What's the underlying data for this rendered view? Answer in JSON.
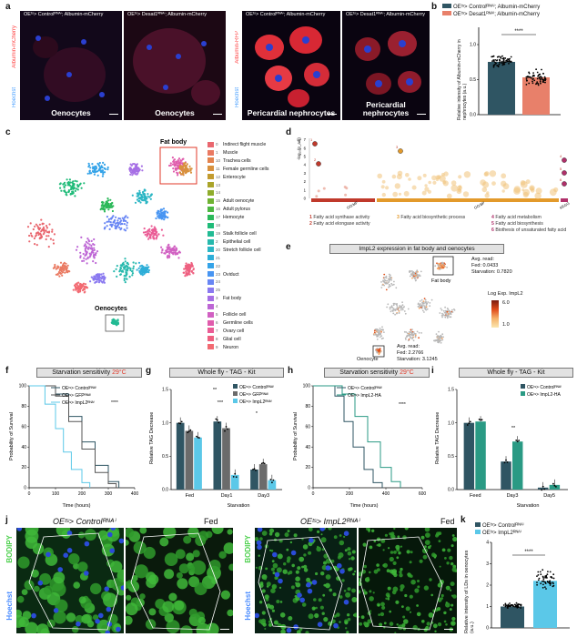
{
  "panel_letters": [
    "a",
    "b",
    "c",
    "d",
    "e",
    "f",
    "g",
    "h",
    "i",
    "j",
    "k"
  ],
  "panel_a": {
    "images": [
      {
        "title": "OEᵗˢ> Controlᴿᴺᴬⁱ; Albumin-mCherry",
        "caption": "Oenocytes"
      },
      {
        "title": "OEᵗˢ> Desat1ᴿᴺᴬⁱ; Albumin-mCherry",
        "caption": "Oenocytes"
      },
      {
        "title": "OEᵗˢ> Controlᴿᴺᴬⁱ; Albumin-mCherry",
        "caption": "Pericardial nephrocytes"
      },
      {
        "title": "OEᵗˢ> Desat1ᴿᴺᴬⁱ; Albumin-mCherry",
        "caption": "Pericardial nephrocytes"
      }
    ],
    "side_label_1": "Albumin-mCherry",
    "side_label_2": "Albumin-RFP",
    "hoechst": "Hoechst"
  },
  "panel_b": {
    "legend": [
      "OEᵗˢ> Controlᴿᴺᴬⁱ; Albumin-mCherry",
      "OEᵗˢ> Desat1ᴿᴺᴬⁱ; Albumin-mCherry"
    ],
    "ylabel": "Relative intensity of Albumin-mCherry in nephrocytes (a.u.)",
    "yticks": [
      "0.0",
      "0.5",
      "1.0",
      "1.5"
    ],
    "sig": "****",
    "colors": [
      "#2f5563",
      "#e8806a"
    ]
  },
  "panel_c": {
    "fat_body_label": "Fat body",
    "oenocytes_label": "Oenocytes",
    "legend": [
      {
        "n": "0",
        "label": "Indirect flight muscle",
        "color": "#e9676f"
      },
      {
        "n": "1",
        "label": "Muscle",
        "color": "#ea7a62"
      },
      {
        "n": "10",
        "label": "Trachea cells",
        "color": "#e3834e"
      },
      {
        "n": "11",
        "label": "Female germline cells",
        "color": "#d8913e"
      },
      {
        "n": "12",
        "label": "Enterocyte",
        "color": "#c29b2f"
      },
      {
        "n": "13",
        "label": "",
        "color": "#aaa42a"
      },
      {
        "n": "14",
        "label": "",
        "color": "#8fac2c"
      },
      {
        "n": "15",
        "label": "Adult oenocyte",
        "color": "#6fb232"
      },
      {
        "n": "16",
        "label": "Adult pylorus",
        "color": "#4cb742"
      },
      {
        "n": "17",
        "label": "Hemocyte",
        "color": "#2cb95a"
      },
      {
        "n": "18",
        "label": "",
        "color": "#1fbb78"
      },
      {
        "n": "19",
        "label": "Stalk follicle cell",
        "color": "#22bb94"
      },
      {
        "n": "2",
        "label": "Epithelial cell",
        "color": "#27b9ad"
      },
      {
        "n": "20",
        "label": "Stretch follicle cell",
        "color": "#2cb6c4"
      },
      {
        "n": "21",
        "label": "",
        "color": "#2eaed8"
      },
      {
        "n": "22",
        "label": "",
        "color": "#34a3e8"
      },
      {
        "n": "23",
        "label": "Oviduct",
        "color": "#4895f2"
      },
      {
        "n": "24",
        "label": "",
        "color": "#6886f4"
      },
      {
        "n": "25",
        "label": "",
        "color": "#8a79f0"
      },
      {
        "n": "3",
        "label": "Fat body",
        "color": "#a66fe5"
      },
      {
        "n": "4",
        "label": "",
        "color": "#bd66d5"
      },
      {
        "n": "5",
        "label": "Follicle cell",
        "color": "#d160c2"
      },
      {
        "n": "6",
        "label": "Germline cells",
        "color": "#e05cac"
      },
      {
        "n": "7",
        "label": "Ovary cell",
        "color": "#ea5c95"
      },
      {
        "n": "8",
        "label": "Glial cell",
        "color": "#ee6080"
      },
      {
        "n": "9",
        "label": "Neuron",
        "color": "#f26a72"
      }
    ]
  },
  "panel_d": {
    "ylabel": "-log₁₀(p_adj)",
    "yticks": [
      "0",
      "1",
      "2",
      "3",
      "4",
      "5",
      "6",
      "7"
    ],
    "sources": [
      "GO:MF",
      "GO:BP",
      "KEGG"
    ],
    "labels": [
      {
        "n": "1",
        "label": "Fatty acid synthase activity",
        "color": "#c0392b"
      },
      {
        "n": "2",
        "label": "Fatty acid elongase activity",
        "color": "#c0392b"
      },
      {
        "n": "3",
        "label": "Fatty acid biosynthetic process",
        "color": "#e39a2b"
      },
      {
        "n": "4",
        "label": "Fatty acid metabolism",
        "color": "#b0306a"
      },
      {
        "n": "5",
        "label": "Fatty acid biosynthesis",
        "color": "#b0306a"
      },
      {
        "n": "6",
        "label": "Biothesis of unsaturated fatty acid",
        "color": "#b0306a"
      }
    ]
  },
  "panel_e": {
    "title": "ImpL2 expression in fat body and oenocytes",
    "fat_body": "Fat body",
    "oenocyte": "Oenocyte",
    "fb_read": [
      "Avg. read:",
      "Fed: 0.0433",
      "Starvation: 0.7820"
    ],
    "oe_read": [
      "Avg. read:",
      "Fed: 2.2766",
      "Starvation: 3.1245"
    ],
    "scale_title": "Log Exp. ImpL2",
    "scale_max": "6.0",
    "scale_min": "1.0"
  },
  "panel_f": {
    "title": "Starvation sensitivity",
    "temp": "29°C",
    "legend": [
      "OEᵗˢ> Controlᴿᴺᴬⁱ",
      "OEᵗˢ> GFPᴿᴺᴬⁱ",
      "OEᵗˢ> ImpL2ᴿᴺᴬⁱ"
    ],
    "sig": "****",
    "ylabel": "Probability of Survival",
    "xlabel": "Time (hours)",
    "xticks": [
      "0",
      "100",
      "200",
      "300",
      "400"
    ],
    "yticks": [
      "0",
      "20",
      "40",
      "60",
      "80",
      "100"
    ]
  },
  "panel_g": {
    "title": "Whole fly - TAG - Kit",
    "legend": [
      "OEᵗˢ> Controlᴿᴺᴬⁱ",
      "OEᵗˢ> GFPᴿᴺᴬⁱ",
      "OEᵗˢ> ImpL2ᴿᴺᴬⁱ"
    ],
    "ylabel": "Relative TAG Decrease",
    "categories": [
      "Fed",
      "Day1",
      "Day3"
    ],
    "xsub": "Starvation",
    "yticks": [
      "0.0",
      "0.5",
      "1.0",
      "1.5"
    ],
    "sig": [
      "**",
      "***",
      "*"
    ],
    "colors": [
      "#2f5563",
      "#6b6b6b",
      "#5bc8e8"
    ]
  },
  "panel_h": {
    "title": "Starvation sensitivity",
    "temp": "29°C",
    "legend": [
      "OEᵗˢ> Controlᴿᴺᴬⁱ",
      "OEᵗˢ> ImpL2-HA"
    ],
    "sig": "****",
    "ylabel": "Probability of Survival",
    "xlabel": "Time (hours)",
    "xticks": [
      "0",
      "200",
      "400",
      "600"
    ],
    "yticks": [
      "0",
      "20",
      "40",
      "60",
      "80",
      "100"
    ]
  },
  "panel_i": {
    "title": "Whole fly - TAG - Kit",
    "legend": [
      "OEᵗˢ> Controlᴿᴺᴬⁱ",
      "OEᵗˢ> ImpL2-HA"
    ],
    "ylabel": "Relative TAG Decrease",
    "categories": [
      "Feed",
      "Day3",
      "Day5"
    ],
    "xsub": "Starvation",
    "yticks": [
      "0.0",
      "0.5",
      "1.0",
      "1.5"
    ],
    "sig": "**",
    "colors": [
      "#2f5563",
      "#2a9a84"
    ]
  },
  "panel_j": {
    "header_1": "OEᵗˢ> Controlᴿᴺᴬⁱ",
    "header_2": "OEᵗˢ> ImpL2ᴿᴺᴬⁱ",
    "fed": "Fed",
    "bodipy": "BODIPY",
    "hoechst": "Hoechst"
  },
  "panel_k": {
    "legend": [
      "OEᵗˢ> Controlᴿᴺᴬⁱ",
      "OEᵗˢ> ImpL2ᴿᴺᴬⁱ"
    ],
    "ylabel": "Relative intensity of LDs in oenocytes (a.u.)",
    "yticks": [
      "0",
      "1",
      "2",
      "3",
      "4"
    ],
    "sig": "****",
    "colors": [
      "#2f5563",
      "#5bc8e8"
    ]
  },
  "chart_data": [
    {
      "type": "bar",
      "panel": "b",
      "categories": [
        "Control",
        "Desat1"
      ],
      "values": [
        1.0,
        0.7
      ],
      "ylabel": "Relative intensity of Albumin-mCherry in nephrocytes (a.u.)",
      "ylim": [
        0,
        1.5
      ]
    },
    {
      "type": "line",
      "panel": "f",
      "xlabel": "Time (hours)",
      "ylabel": "Probability of Survival",
      "xlim": [
        0,
        400
      ],
      "ylim": [
        0,
        100
      ],
      "series": [
        {
          "name": "OEᵗˢ> Controlᴿᴺᴬⁱ",
          "x": [
            0,
            100,
            150,
            200,
            250,
            300,
            340
          ],
          "y": [
            100,
            92,
            70,
            45,
            22,
            6,
            0
          ]
        },
        {
          "name": "OEᵗˢ> GFPᴿᴺᴬⁱ",
          "x": [
            0,
            100,
            150,
            200,
            250,
            300,
            330
          ],
          "y": [
            100,
            90,
            65,
            38,
            15,
            4,
            0
          ]
        },
        {
          "name": "OEᵗˢ> ImpL2ᴿᴺᴬⁱ",
          "x": [
            0,
            60,
            100,
            130,
            160,
            200,
            230
          ],
          "y": [
            100,
            82,
            58,
            35,
            18,
            5,
            0
          ]
        }
      ]
    },
    {
      "type": "bar",
      "panel": "g",
      "categories": [
        "Fed",
        "Day1",
        "Day3"
      ],
      "series": [
        {
          "name": "OEᵗˢ> Controlᴿᴺᴬⁱ",
          "values": [
            1.0,
            1.02,
            0.3
          ]
        },
        {
          "name": "OEᵗˢ> GFPᴿᴺᴬⁱ",
          "values": [
            0.88,
            0.92,
            0.38
          ]
        },
        {
          "name": "OEᵗˢ> ImpL2ᴿᴺᴬⁱ",
          "values": [
            0.78,
            0.22,
            0.14
          ]
        }
      ],
      "ylabel": "Relative TAG Decrease",
      "ylim": [
        0,
        1.5
      ]
    },
    {
      "type": "line",
      "panel": "h",
      "xlabel": "Time (hours)",
      "ylabel": "Probability of Survival",
      "xlim": [
        0,
        600
      ],
      "ylim": [
        0,
        100
      ],
      "series": [
        {
          "name": "OEᵗˢ> Controlᴿᴺᴬⁱ",
          "x": [
            0,
            120,
            170,
            220,
            280,
            330,
            380
          ],
          "y": [
            100,
            90,
            65,
            40,
            18,
            5,
            0
          ]
        },
        {
          "name": "OEᵗˢ> ImpL2-HA",
          "x": [
            0,
            160,
            230,
            300,
            370,
            430,
            480
          ],
          "y": [
            100,
            92,
            70,
            45,
            20,
            6,
            0
          ]
        }
      ]
    },
    {
      "type": "bar",
      "panel": "i",
      "categories": [
        "Feed",
        "Day3",
        "Day5"
      ],
      "series": [
        {
          "name": "OEᵗˢ> Controlᴿᴺᴬⁱ",
          "values": [
            1.0,
            0.42,
            0.03
          ]
        },
        {
          "name": "OEᵗˢ> ImpL2-HA",
          "values": [
            1.02,
            0.72,
            0.07
          ]
        }
      ],
      "ylabel": "Relative TAG Decrease",
      "ylim": [
        0,
        1.5
      ]
    },
    {
      "type": "bar",
      "panel": "k",
      "categories": [
        "Control",
        "ImpL2"
      ],
      "values": [
        1.0,
        2.2
      ],
      "ylabel": "Relative intensity of LDs in oenocytes (a.u.)",
      "ylim": [
        0,
        4
      ]
    }
  ]
}
